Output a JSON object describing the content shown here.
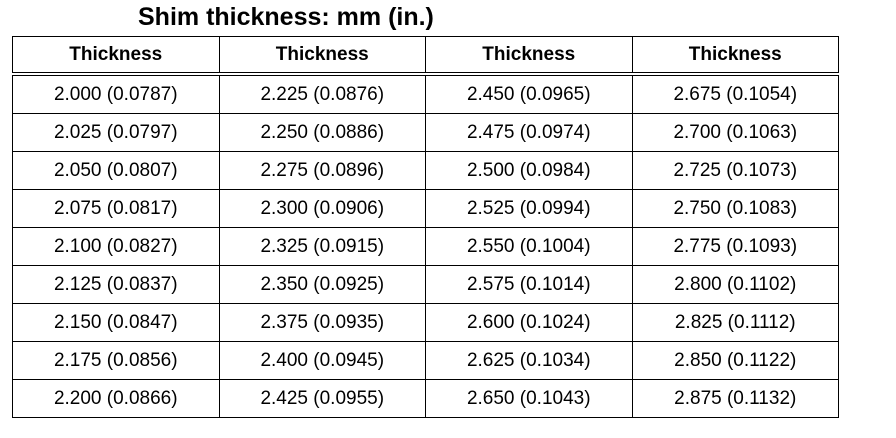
{
  "title": "Shim thickness: mm (in.)",
  "table": {
    "header": [
      "Thickness",
      "Thickness",
      "Thickness",
      "Thickness"
    ],
    "rows": [
      [
        "2.000 (0.0787)",
        "2.225 (0.0876)",
        "2.450 (0.0965)",
        "2.675 (0.1054)"
      ],
      [
        "2.025 (0.0797)",
        "2.250 (0.0886)",
        "2.475 (0.0974)",
        "2.700 (0.1063)"
      ],
      [
        "2.050 (0.0807)",
        "2.275 (0.0896)",
        "2.500 (0.0984)",
        "2.725 (0.1073)"
      ],
      [
        "2.075 (0.0817)",
        "2.300 (0.0906)",
        "2.525 (0.0994)",
        "2.750 (0.1083)"
      ],
      [
        "2.100 (0.0827)",
        "2.325 (0.0915)",
        "2.550 (0.1004)",
        "2.775 (0.1093)"
      ],
      [
        "2.125 (0.0837)",
        "2.350 (0.0925)",
        "2.575 (0.1014)",
        "2.800 (0.1102)"
      ],
      [
        "2.150 (0.0847)",
        "2.375 (0.0935)",
        "2.600 (0.1024)",
        "2.825 (0.1112)"
      ],
      [
        "2.175 (0.0856)",
        "2.400 (0.0945)",
        "2.625 (0.1034)",
        "2.850 (0.1122)"
      ],
      [
        "2.200 (0.0866)",
        "2.425 (0.0955)",
        "2.650 (0.1043)",
        "2.875 (0.1132)"
      ]
    ]
  }
}
